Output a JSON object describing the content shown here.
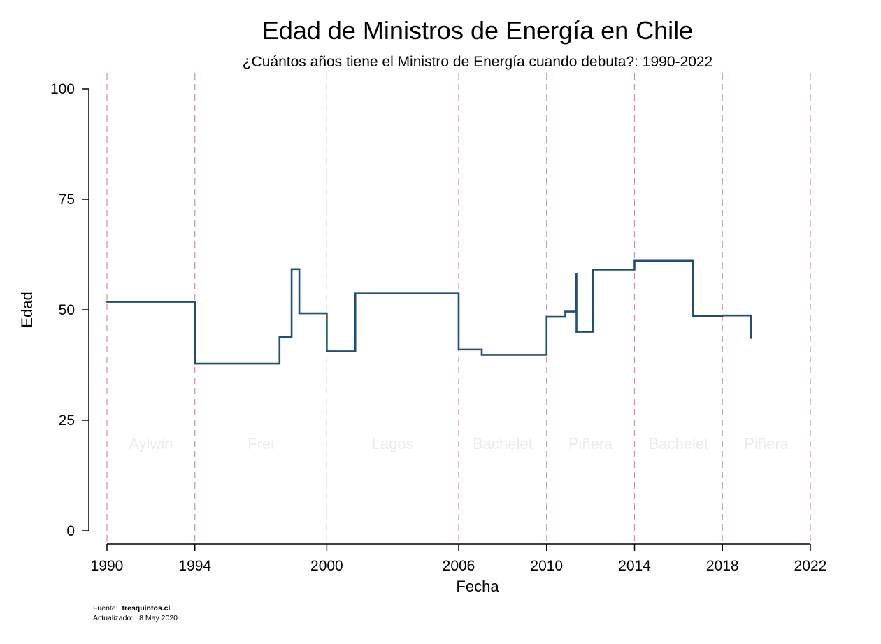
{
  "chart_data": {
    "type": "line",
    "line_style": "step",
    "title": "Edad de Ministros de Energía en Chile",
    "subtitle": "¿Cuántos años tiene el Ministro de Energía cuando debuta?: 1990-2022",
    "xlabel": "Fecha",
    "ylabel": "Edad",
    "xlim": [
      1990,
      2022
    ],
    "ylim": [
      0,
      100
    ],
    "x_ticks": [
      1990,
      1994,
      2000,
      2006,
      2010,
      2014,
      2018,
      2022
    ],
    "y_ticks": [
      0,
      25,
      50,
      75,
      100
    ],
    "grid": false,
    "colors": {
      "line": "#1f4e79",
      "period_divider": "#d98aa0",
      "period_label": "#ececec",
      "axis": "#000000"
    },
    "series": [
      {
        "points": [
          {
            "x": 1990.0,
            "y": 51.8
          },
          {
            "x": 1994.0,
            "y": 37.8
          },
          {
            "x": 1997.85,
            "y": 43.8
          },
          {
            "x": 1998.4,
            "y": 59.2
          },
          {
            "x": 1998.75,
            "y": 49.2
          },
          {
            "x": 2000.0,
            "y": 40.6
          },
          {
            "x": 2001.3,
            "y": 53.7
          },
          {
            "x": 2006.0,
            "y": 41.0
          },
          {
            "x": 2007.05,
            "y": 39.8
          },
          {
            "x": 2010.0,
            "y": 48.4
          },
          {
            "x": 2010.85,
            "y": 49.6
          },
          {
            "x": 2011.35,
            "y": 58.0
          },
          {
            "x": 2011.36,
            "y": 45.0
          },
          {
            "x": 2012.1,
            "y": 59.1
          },
          {
            "x": 2014.0,
            "y": 61.1
          },
          {
            "x": 2016.65,
            "y": 48.6
          },
          {
            "x": 2018.0,
            "y": 48.7
          },
          {
            "x": 2019.3,
            "y": 43.6
          }
        ]
      }
    ],
    "periods": [
      {
        "label": "Aylwin",
        "start": 1990,
        "end": 1994
      },
      {
        "label": "Frei",
        "start": 1994,
        "end": 2000
      },
      {
        "label": "Lagos",
        "start": 2000,
        "end": 2006
      },
      {
        "label": "Bachelet",
        "start": 2006,
        "end": 2010
      },
      {
        "label": "Piñera",
        "start": 2010,
        "end": 2014
      },
      {
        "label": "Bachelet",
        "start": 2014,
        "end": 2018
      },
      {
        "label": "Piñera",
        "start": 2018,
        "end": 2022
      }
    ],
    "footnote": {
      "source_label": "Fuente:",
      "source_value": "tresquintos.cl",
      "updated_label": "Actualizado:",
      "updated_value": "8 May 2020"
    }
  }
}
